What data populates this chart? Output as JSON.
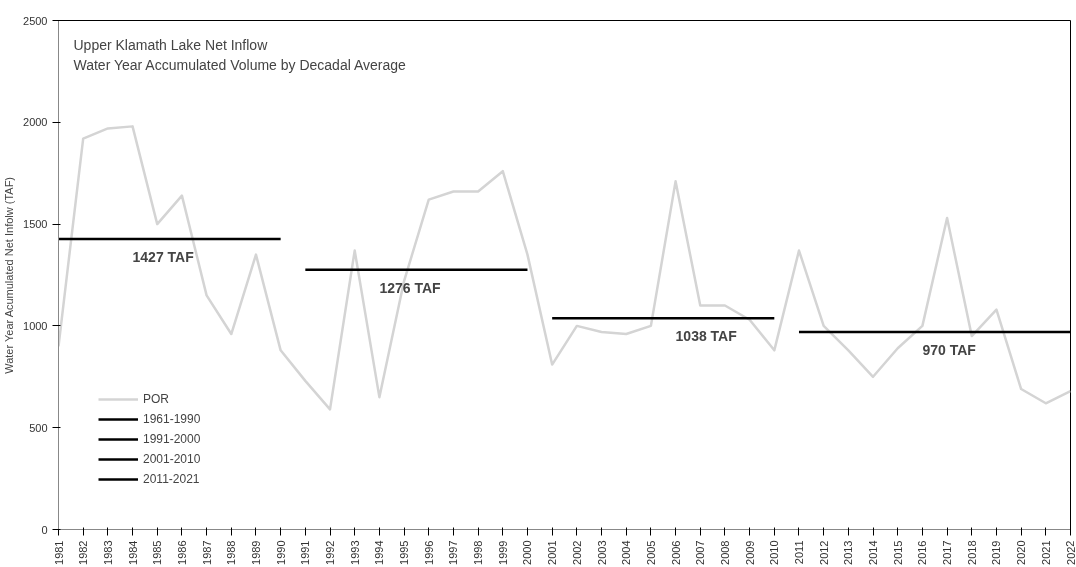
{
  "chart_data": {
    "type": "line",
    "title": "Upper Klamath Lake Net Inflow",
    "subtitle": "Water Year Accumulated Volume by Decadal Average",
    "ylabel": "Water Year Acumulated Net Infolw (TAF)",
    "categories": [
      "1981",
      "1982",
      "1983",
      "1984",
      "1985",
      "1986",
      "1987",
      "1988",
      "1989",
      "1990",
      "1991",
      "1992",
      "1993",
      "1994",
      "1995",
      "1996",
      "1997",
      "1998",
      "1999",
      "2000",
      "2001",
      "2002",
      "2003",
      "2004",
      "2005",
      "2006",
      "2007",
      "2008",
      "2009",
      "2010",
      "2011",
      "2012",
      "2013",
      "2014",
      "2015",
      "2016",
      "2017",
      "2018",
      "2019",
      "2020",
      "2021",
      "2022"
    ],
    "series": [
      {
        "name": "POR",
        "color": "#d4d4d4",
        "values": [
          900,
          1920,
          1970,
          1980,
          1500,
          1640,
          1150,
          960,
          1350,
          880,
          730,
          590,
          1370,
          650,
          1220,
          1620,
          1660,
          1660,
          1760,
          1350,
          810,
          1000,
          970,
          960,
          1000,
          1710,
          1100,
          1100,
          1030,
          880,
          1370,
          1000,
          880,
          750,
          890,
          1000,
          1530,
          950,
          1080,
          690,
          620,
          680
        ]
      },
      {
        "name": "1961-1990",
        "color": "#000000",
        "values": [
          1427,
          1427,
          1427,
          1427,
          1427,
          1427,
          1427,
          1427,
          1427,
          1427,
          null,
          null,
          null,
          null,
          null,
          null,
          null,
          null,
          null,
          null,
          null,
          null,
          null,
          null,
          null,
          null,
          null,
          null,
          null,
          null,
          null,
          null,
          null,
          null,
          null,
          null,
          null,
          null,
          null,
          null,
          null,
          null
        ]
      },
      {
        "name": "1991-2000",
        "color": "#000000",
        "values": [
          null,
          null,
          null,
          null,
          null,
          null,
          null,
          null,
          null,
          null,
          1276,
          1276,
          1276,
          1276,
          1276,
          1276,
          1276,
          1276,
          1276,
          1276,
          null,
          null,
          null,
          null,
          null,
          null,
          null,
          null,
          null,
          null,
          null,
          null,
          null,
          null,
          null,
          null,
          null,
          null,
          null,
          null,
          null,
          null
        ]
      },
      {
        "name": "2001-2010",
        "color": "#000000",
        "values": [
          null,
          null,
          null,
          null,
          null,
          null,
          null,
          null,
          null,
          null,
          null,
          null,
          null,
          null,
          null,
          null,
          null,
          null,
          null,
          null,
          1038,
          1038,
          1038,
          1038,
          1038,
          1038,
          1038,
          1038,
          1038,
          1038,
          null,
          null,
          null,
          null,
          null,
          null,
          null,
          null,
          null,
          null,
          null,
          null
        ]
      },
      {
        "name": "2011-2021",
        "color": "#000000",
        "values": [
          null,
          null,
          null,
          null,
          null,
          null,
          null,
          null,
          null,
          null,
          null,
          null,
          null,
          null,
          null,
          null,
          null,
          null,
          null,
          null,
          null,
          null,
          null,
          null,
          null,
          null,
          null,
          null,
          null,
          null,
          970,
          970,
          970,
          970,
          970,
          970,
          970,
          970,
          970,
          970,
          970,
          970
        ]
      }
    ],
    "annotations": [
      {
        "text": "1427 TAF",
        "x": "1984",
        "y": 1427
      },
      {
        "text": "1276 TAF",
        "x": "1994",
        "y": 1276
      },
      {
        "text": "1038 TAF",
        "x": "2006",
        "y": 1038
      },
      {
        "text": "970 TAF",
        "x": "2016",
        "y": 970
      }
    ],
    "ylim": [
      0,
      2500
    ],
    "yticks": [
      0,
      500,
      1000,
      1500,
      2000,
      2500
    ],
    "grid": false,
    "legend": "bottom left",
    "marker": "none",
    "line_style": "solid"
  }
}
